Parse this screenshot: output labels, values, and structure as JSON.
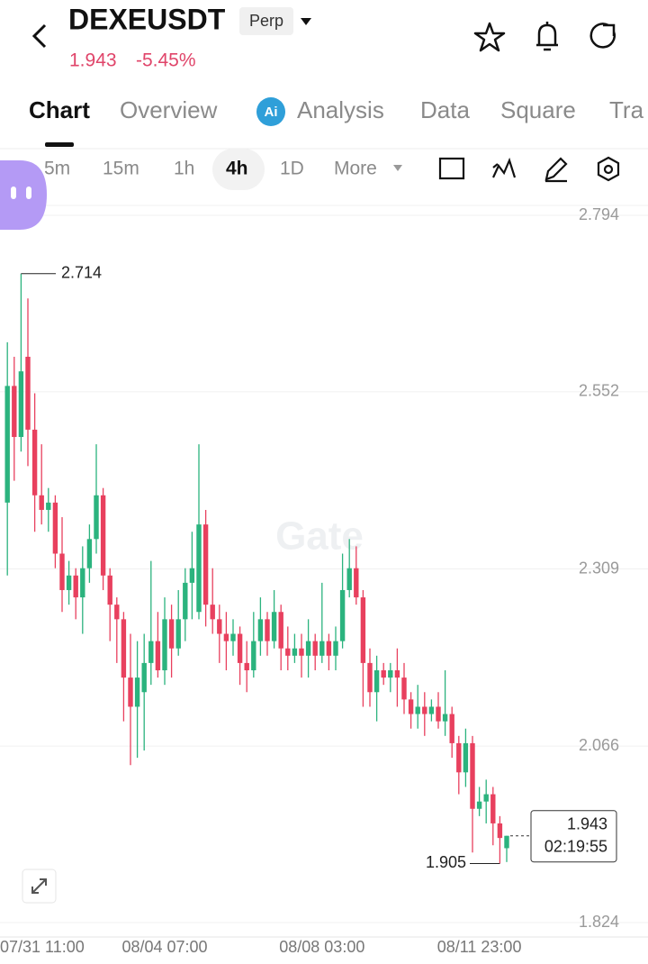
{
  "header": {
    "symbol": "DEXEUSDT",
    "badge": "Perp",
    "price": "1.943",
    "change": "-5.45%"
  },
  "tabs": [
    "Chart",
    "Overview",
    "Analysis",
    "Data",
    "Square",
    "Tra"
  ],
  "intervals": [
    "5m",
    "15m",
    "1h",
    "4h",
    "1D",
    "More"
  ],
  "chart_data": {
    "type": "candlestick",
    "watermark": "Gate",
    "categories": [
      "07/31 11:00",
      null,
      null,
      null,
      null,
      null,
      null,
      null,
      null,
      null,
      null,
      null,
      null,
      null,
      null,
      null,
      null,
      null,
      null,
      null,
      null,
      null,
      null,
      "08/04 07:00",
      null,
      null,
      null,
      null,
      null,
      null,
      null,
      null,
      null,
      null,
      null,
      null,
      null,
      null,
      null,
      null,
      null,
      null,
      null,
      null,
      null,
      null,
      "08/08 03:00",
      null,
      null,
      null,
      null,
      null,
      null,
      null,
      null,
      null,
      null,
      null,
      null,
      null,
      null,
      null,
      null,
      null,
      null,
      null,
      null,
      null,
      null,
      "08/11 23:00",
      null,
      null,
      null,
      null
    ],
    "open": [
      2.4,
      2.56,
      2.49,
      2.6,
      2.5,
      2.41,
      2.39,
      2.4,
      2.33,
      2.28,
      2.3,
      2.27,
      2.31,
      2.35,
      2.41,
      2.3,
      2.26,
      2.24,
      2.16,
      2.12,
      2.14,
      2.18,
      2.21,
      2.17,
      2.24,
      2.2,
      2.24,
      2.29,
      2.25,
      2.37,
      2.26,
      2.24,
      2.22,
      2.21,
      2.22,
      2.18,
      2.17,
      2.21,
      2.24,
      2.21,
      2.25,
      2.2,
      2.19,
      2.2,
      2.19,
      2.21,
      2.19,
      2.21,
      2.19,
      2.21,
      2.28,
      2.31,
      2.27,
      2.18,
      2.14,
      2.17,
      2.16,
      2.17,
      2.16,
      2.13,
      2.11,
      2.12,
      2.11,
      2.12,
      2.1,
      2.11,
      2.07,
      2.03,
      2.07,
      1.98,
      1.99,
      2.0,
      1.96,
      1.926
    ],
    "high": [
      2.62,
      2.6,
      2.714,
      2.68,
      2.55,
      2.48,
      2.42,
      2.41,
      2.38,
      2.32,
      2.31,
      2.34,
      2.37,
      2.48,
      2.42,
      2.31,
      2.27,
      2.25,
      2.22,
      2.21,
      2.22,
      2.32,
      2.25,
      2.27,
      2.26,
      2.28,
      2.31,
      2.36,
      2.48,
      2.39,
      2.31,
      2.26,
      2.25,
      2.24,
      2.23,
      2.21,
      2.25,
      2.27,
      2.25,
      2.28,
      2.26,
      2.23,
      2.22,
      2.22,
      2.24,
      2.22,
      2.29,
      2.22,
      2.23,
      2.33,
      2.35,
      2.34,
      2.28,
      2.2,
      2.19,
      2.18,
      2.18,
      2.2,
      2.18,
      2.14,
      2.15,
      2.14,
      2.13,
      2.14,
      2.17,
      2.12,
      2.08,
      2.09,
      2.08,
      2.01,
      2.02,
      2.01,
      1.97,
      1.943
    ],
    "low": [
      2.3,
      2.43,
      2.47,
      2.45,
      2.36,
      2.37,
      2.36,
      2.31,
      2.25,
      2.26,
      2.24,
      2.22,
      2.29,
      2.33,
      2.28,
      2.21,
      2.18,
      2.1,
      2.04,
      2.05,
      2.06,
      2.15,
      2.16,
      2.15,
      2.16,
      2.19,
      2.21,
      2.24,
      2.24,
      2.23,
      2.22,
      2.18,
      2.17,
      2.19,
      2.15,
      2.14,
      2.16,
      2.19,
      2.19,
      2.2,
      2.17,
      2.17,
      2.18,
      2.16,
      2.16,
      2.17,
      2.18,
      2.17,
      2.17,
      2.2,
      2.27,
      2.26,
      2.12,
      2.12,
      2.1,
      2.15,
      2.14,
      2.12,
      2.11,
      2.09,
      2.09,
      2.08,
      2.1,
      2.09,
      2.08,
      2.05,
      2.0,
      2.01,
      1.92,
      1.97,
      1.96,
      1.93,
      1.905,
      1.907
    ],
    "close": [
      2.56,
      2.49,
      2.58,
      2.5,
      2.41,
      2.39,
      2.4,
      2.33,
      2.28,
      2.3,
      2.27,
      2.31,
      2.35,
      2.41,
      2.3,
      2.26,
      2.24,
      2.16,
      2.12,
      2.16,
      2.18,
      2.21,
      2.17,
      2.24,
      2.2,
      2.24,
      2.29,
      2.31,
      2.37,
      2.26,
      2.24,
      2.22,
      2.21,
      2.22,
      2.18,
      2.17,
      2.21,
      2.24,
      2.21,
      2.25,
      2.2,
      2.19,
      2.2,
      2.19,
      2.21,
      2.19,
      2.21,
      2.19,
      2.21,
      2.28,
      2.31,
      2.27,
      2.18,
      2.14,
      2.17,
      2.16,
      2.17,
      2.16,
      2.13,
      2.11,
      2.12,
      2.11,
      2.12,
      2.1,
      2.11,
      2.07,
      2.03,
      2.07,
      1.98,
      1.99,
      2.0,
      1.96,
      1.94,
      1.943
    ],
    "up_color": "#2bb37e",
    "down_color": "#e8405e",
    "ylim": [
      1.824,
      2.794
    ],
    "yticks": [
      1.824,
      2.066,
      2.309,
      2.552,
      2.794
    ],
    "grid": true,
    "max_label": 2.714,
    "min_label": 1.905,
    "last_price": 1.943,
    "countdown": "02:19:55"
  }
}
